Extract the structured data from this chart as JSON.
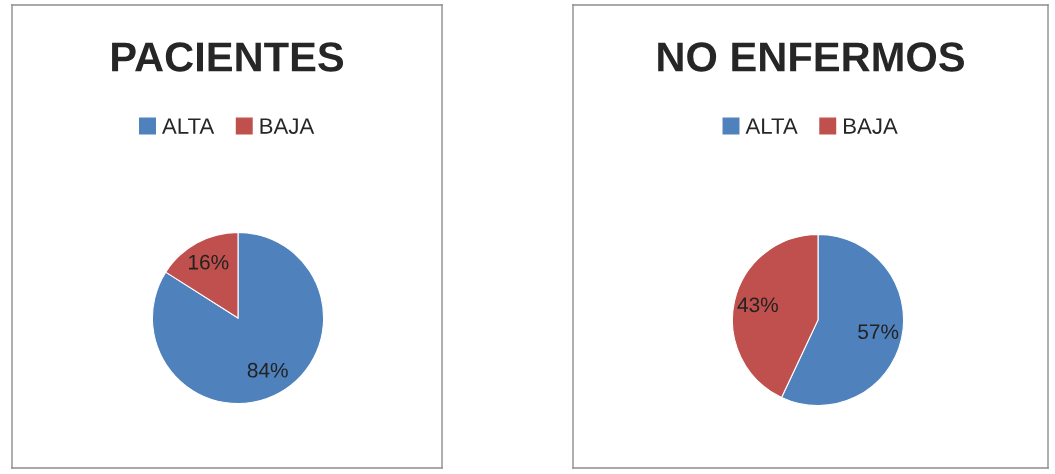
{
  "chart_data": [
    {
      "type": "pie",
      "title": "PACIENTES",
      "categories": [
        "ALTA",
        "BAJA"
      ],
      "values": [
        84,
        16
      ],
      "colors": [
        "#4f81bd",
        "#c0504d"
      ],
      "value_labels": [
        "84%",
        "16%"
      ],
      "legend": "top"
    },
    {
      "type": "pie",
      "title": "NO ENFERMOS",
      "categories": [
        "ALTA",
        "BAJA"
      ],
      "values": [
        57,
        43
      ],
      "colors": [
        "#4f81bd",
        "#c0504d"
      ],
      "value_labels": [
        "57%",
        "43%"
      ],
      "legend": "top"
    }
  ]
}
